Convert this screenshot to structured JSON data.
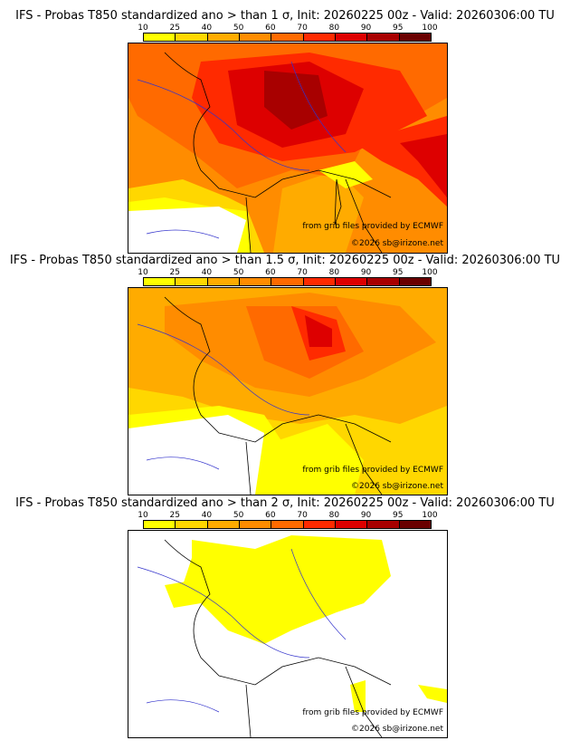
{
  "colorbar": {
    "labels": [
      "10",
      "25",
      "40",
      "50",
      "60",
      "70",
      "80",
      "90",
      "95",
      "100"
    ],
    "colors": [
      "#ffff00",
      "#ffd700",
      "#ffab00",
      "#ff8c00",
      "#ff6a00",
      "#ff2a00",
      "#dd0000",
      "#a80000",
      "#6a0000"
    ]
  },
  "panels": [
    {
      "title": "IFS - Probas T850  standardized ano > than 1 σ, Init: 20260225 00z - Valid: 20260306:00 TU"
    },
    {
      "title": "IFS - Probas T850  standardized ano > than 1.5 σ, Init: 20260225 00z - Valid: 20260306:00 TU"
    },
    {
      "title": "IFS - Probas T850  standardized ano > than 2 σ, Init: 20260225 00z - Valid: 20260306:00 TU"
    }
  ],
  "credits": {
    "source": "from grib files provided by ECMWF",
    "copyright": "©2026 sb@irizone.net"
  }
}
